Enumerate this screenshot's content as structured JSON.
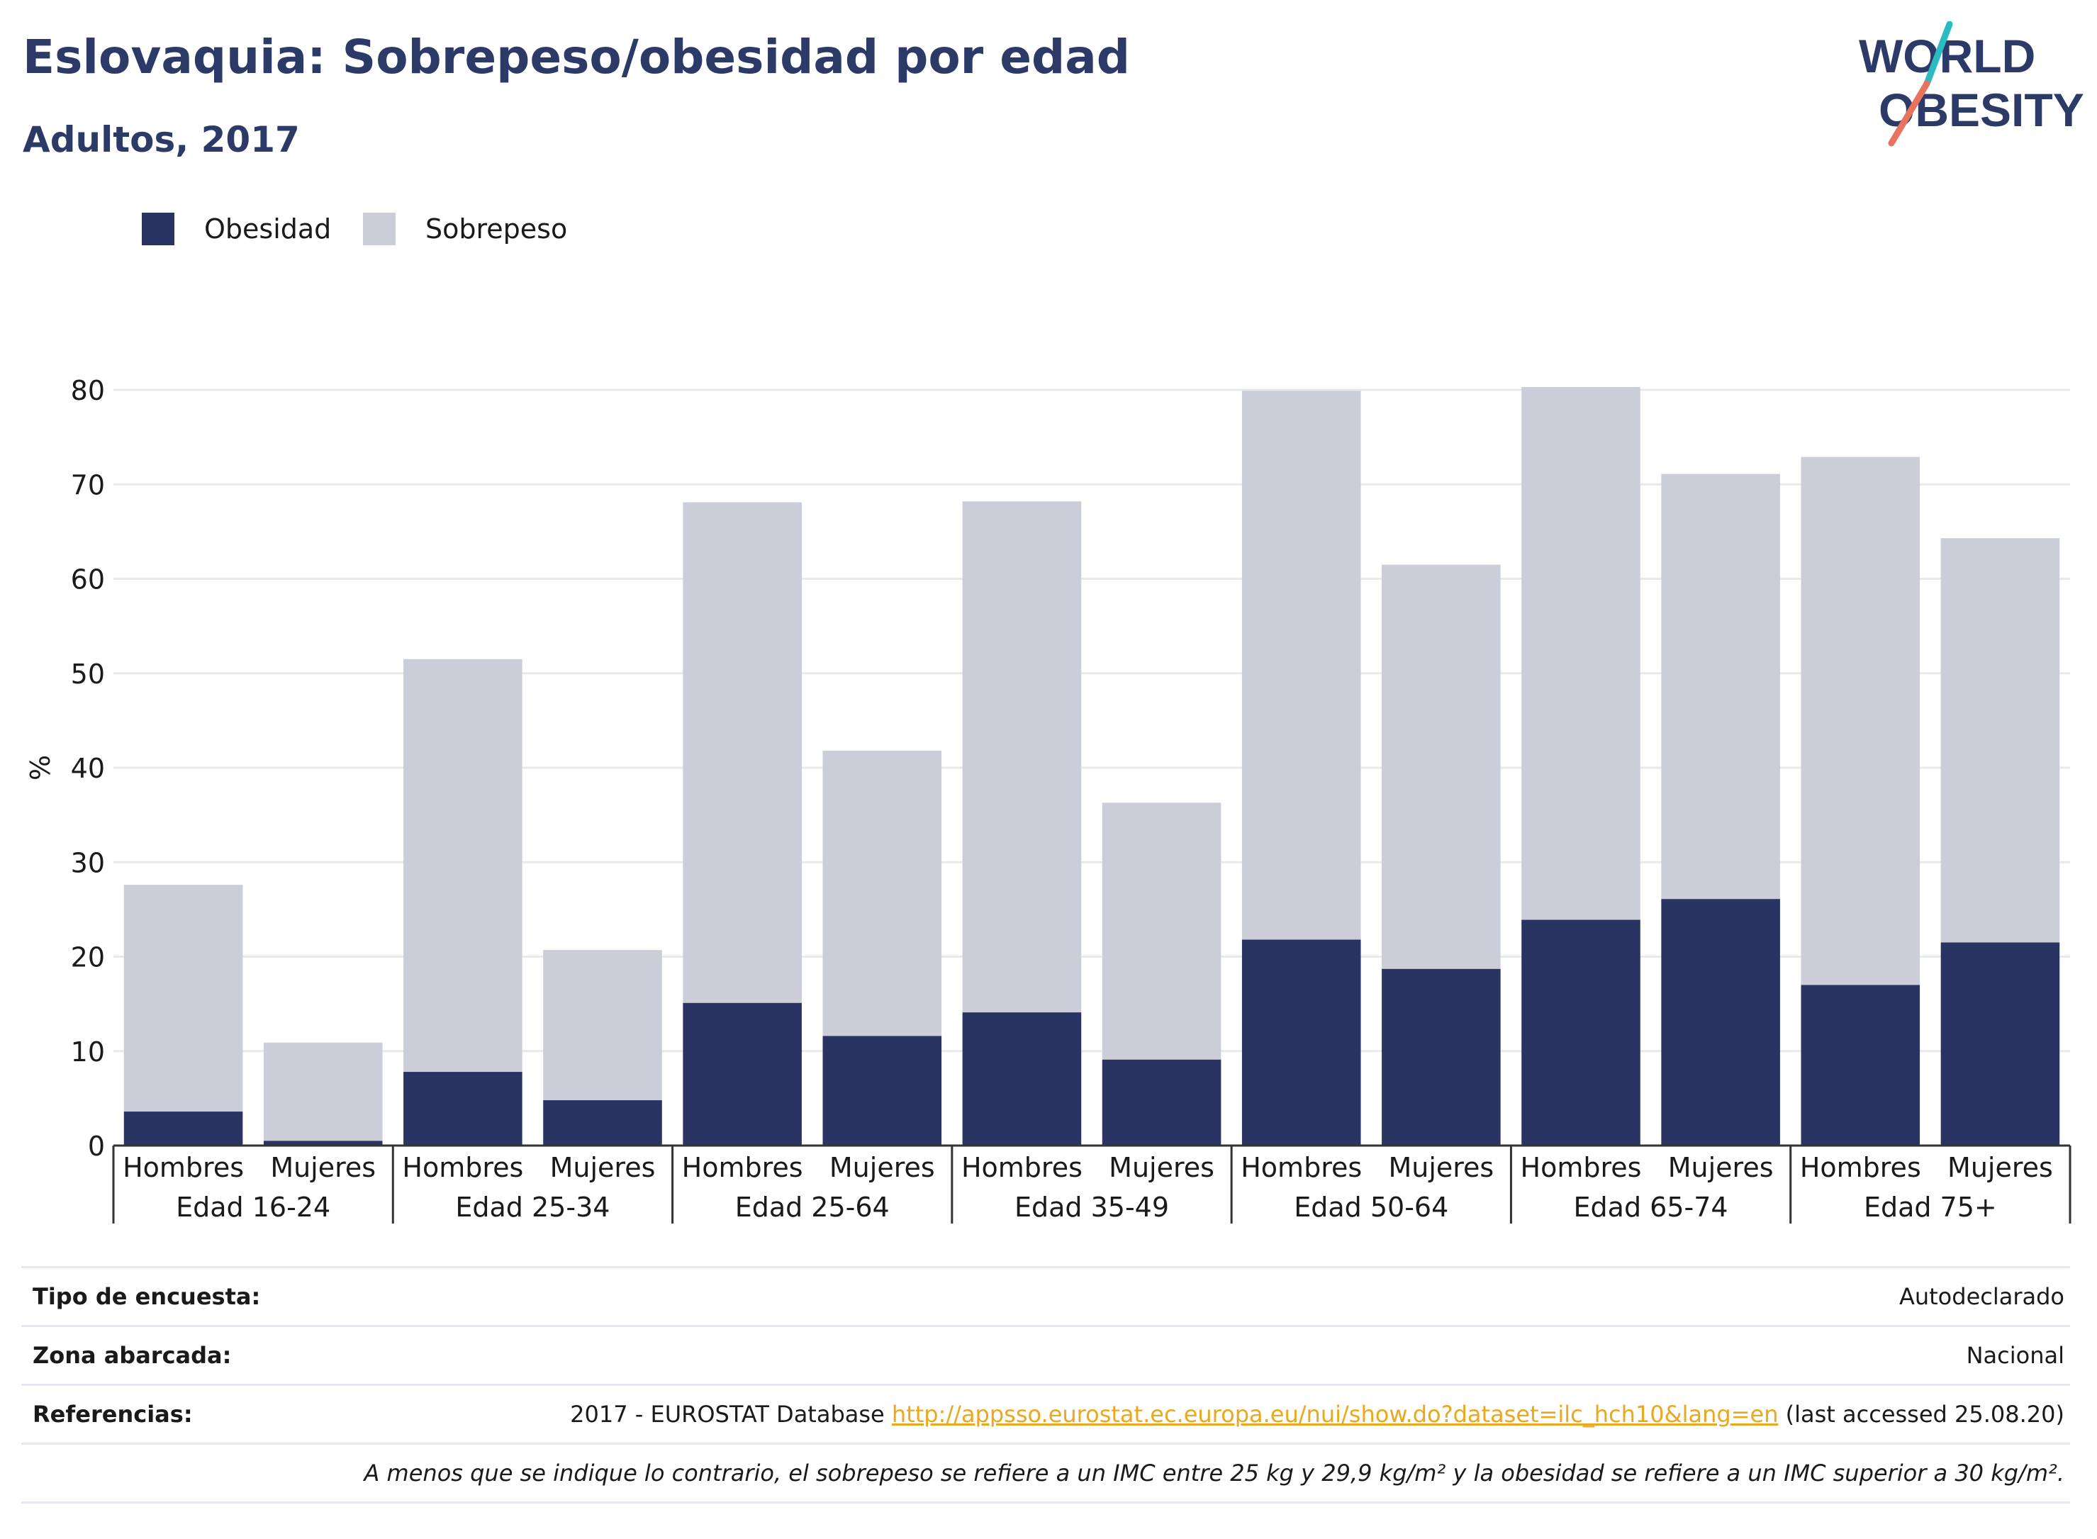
{
  "header": {
    "title": "Eslovaquia: Sobrepeso/obesidad por edad",
    "subtitle": "Adultos, 2017"
  },
  "logo": {
    "line1": "WORLD",
    "line2": "OBESITY"
  },
  "colors": {
    "obesity": "#293462",
    "overweight": "#cbcdd9",
    "title": "#2b3a67",
    "link": "#e9a820",
    "logo_teal": "#2bbcc1",
    "logo_coral": "#e8735f"
  },
  "chart_data": {
    "type": "bar",
    "stacked": true,
    "ylabel": "%",
    "ylim": [
      0,
      80
    ],
    "yticks": [
      0,
      10,
      20,
      30,
      40,
      50,
      60,
      70,
      80
    ],
    "grid": true,
    "legend_position": "top-left",
    "groups": [
      "Edad 16-24",
      "Edad 25-34",
      "Edad 25-64",
      "Edad 35-49",
      "Edad 50-64",
      "Edad 65-74",
      "Edad 75+"
    ],
    "subcategories": [
      "Hombres",
      "Mujeres"
    ],
    "series": [
      {
        "name": "Obesidad",
        "values": [
          3.6,
          0.5,
          7.8,
          4.8,
          15.1,
          11.6,
          14.1,
          9.1,
          21.8,
          18.7,
          23.9,
          26.1,
          17.0,
          21.5
        ]
      },
      {
        "name": "Sobrepeso",
        "values": [
          24.0,
          10.4,
          43.7,
          15.9,
          53.0,
          30.2,
          54.1,
          27.2,
          58.1,
          42.8,
          56.4,
          45.0,
          55.9,
          42.8
        ]
      }
    ]
  },
  "info": {
    "survey_label": "Tipo de encuesta:",
    "survey_value": "Autodeclarado",
    "area_label": "Zona abarcada:",
    "area_value": "Nacional",
    "ref_label": "Referencias:",
    "ref_prefix": "2017 - EUROSTAT Database",
    "ref_link": "http://appsso.eurostat.ec.europa.eu/nui/show.do?dataset=ilc_hch10&lang=en",
    "ref_suffix": "(last accessed 25.08.20)",
    "note": "A menos que se indique lo contrario, el sobrepeso se refiere a un IMC entre 25 kg y 29,9 kg/m² y la obesidad se refiere a un IMC superior a 30 kg/m²."
  }
}
